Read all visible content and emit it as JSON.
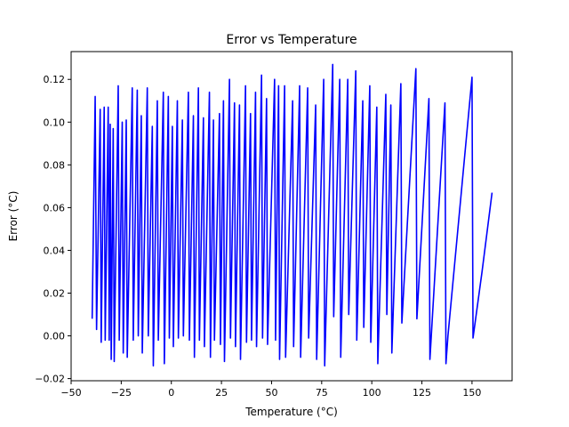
{
  "chart_data": {
    "type": "line",
    "title": "Error vs Temperature",
    "xlabel": "Temperature (°C)",
    "ylabel": "Error (°C)",
    "xlim": [
      -50,
      170
    ],
    "ylim": [
      -0.021,
      0.133
    ],
    "xticks": [
      -50,
      -25,
      0,
      25,
      50,
      75,
      100,
      125,
      150
    ],
    "xtick_labels": [
      "−50",
      "−25",
      "0",
      "25",
      "50",
      "75",
      "100",
      "125",
      "150"
    ],
    "yticks": [
      -0.02,
      0.0,
      0.02,
      0.04,
      0.06,
      0.08,
      0.1,
      0.12
    ],
    "ytick_labels": [
      "−0.02",
      "0.00",
      "0.02",
      "0.04",
      "0.06",
      "0.08",
      "0.10",
      "0.12"
    ],
    "grid": false,
    "series": [
      {
        "color": "#0000ff",
        "points": [
          [
            -39.5,
            0.008
          ],
          [
            -38.0,
            0.112
          ],
          [
            -37.3,
            0.003
          ],
          [
            -35.5,
            0.106
          ],
          [
            -35.0,
            -0.003
          ],
          [
            -33.5,
            0.107
          ],
          [
            -33.0,
            -0.002
          ],
          [
            -31.5,
            0.107
          ],
          [
            -31.0,
            -0.002
          ],
          [
            -30.5,
            0.099
          ],
          [
            -30.0,
            -0.011
          ],
          [
            -29.0,
            0.097
          ],
          [
            -28.5,
            -0.012
          ],
          [
            -26.5,
            0.117
          ],
          [
            -26.0,
            -0.002
          ],
          [
            -24.5,
            0.1
          ],
          [
            -24.0,
            -0.008
          ],
          [
            -22.5,
            0.101
          ],
          [
            -22.0,
            -0.01
          ],
          [
            -19.5,
            0.116
          ],
          [
            -19.0,
            -0.002
          ],
          [
            -17.0,
            0.115
          ],
          [
            -16.5,
            0.0
          ],
          [
            -15.0,
            0.103
          ],
          [
            -14.5,
            -0.008
          ],
          [
            -12.0,
            0.116
          ],
          [
            -11.5,
            0.0
          ],
          [
            -9.5,
            0.098
          ],
          [
            -9.0,
            -0.014
          ],
          [
            -7.0,
            0.11
          ],
          [
            -6.5,
            -0.002
          ],
          [
            -4.0,
            0.114
          ],
          [
            -3.5,
            -0.013
          ],
          [
            -1.5,
            0.112
          ],
          [
            -1.0,
            -0.001
          ],
          [
            0.5,
            0.098
          ],
          [
            1.0,
            -0.005
          ],
          [
            3.0,
            0.11
          ],
          [
            3.5,
            -0.001
          ],
          [
            5.5,
            0.101
          ],
          [
            6.0,
            0.0
          ],
          [
            8.5,
            0.114
          ],
          [
            9.0,
            -0.002
          ],
          [
            11.0,
            0.103
          ],
          [
            11.5,
            -0.01
          ],
          [
            13.5,
            0.116
          ],
          [
            14.0,
            -0.002
          ],
          [
            16.0,
            0.102
          ],
          [
            16.5,
            -0.005
          ],
          [
            19.0,
            0.114
          ],
          [
            19.5,
            -0.01
          ],
          [
            21.0,
            0.101
          ],
          [
            21.5,
            -0.002
          ],
          [
            24.0,
            0.104
          ],
          [
            24.5,
            -0.004
          ],
          [
            26.0,
            0.11
          ],
          [
            26.5,
            -0.012
          ],
          [
            29.0,
            0.12
          ],
          [
            29.5,
            -0.001
          ],
          [
            31.5,
            0.109
          ],
          [
            32.0,
            -0.005
          ],
          [
            34.0,
            0.108
          ],
          [
            34.5,
            -0.011
          ],
          [
            37.0,
            0.117
          ],
          [
            37.5,
            -0.003
          ],
          [
            39.5,
            0.104
          ],
          [
            40.0,
            -0.002
          ],
          [
            42.0,
            0.114
          ],
          [
            42.5,
            -0.005
          ],
          [
            45.0,
            0.122
          ],
          [
            45.5,
            -0.001
          ],
          [
            47.5,
            0.111
          ],
          [
            48.0,
            -0.004
          ],
          [
            51.5,
            0.12
          ],
          [
            52.0,
            -0.002
          ],
          [
            53.5,
            0.117
          ],
          [
            54.0,
            -0.011
          ],
          [
            56.5,
            0.117
          ],
          [
            57.0,
            -0.01
          ],
          [
            60.5,
            0.11
          ],
          [
            61.0,
            -0.005
          ],
          [
            64.0,
            0.117
          ],
          [
            64.5,
            -0.01
          ],
          [
            68.0,
            0.116
          ],
          [
            68.5,
            -0.001
          ],
          [
            72.0,
            0.108
          ],
          [
            72.5,
            -0.011
          ],
          [
            76.0,
            0.12
          ],
          [
            76.5,
            -0.014
          ],
          [
            80.5,
            0.127
          ],
          [
            81.0,
            0.009
          ],
          [
            84.0,
            0.12
          ],
          [
            84.5,
            -0.01
          ],
          [
            88.0,
            0.12
          ],
          [
            88.5,
            0.01
          ],
          [
            92.0,
            0.124
          ],
          [
            92.5,
            -0.002
          ],
          [
            95.5,
            0.11
          ],
          [
            96.0,
            0.004
          ],
          [
            99.0,
            0.117
          ],
          [
            99.5,
            -0.003
          ],
          [
            102.5,
            0.107
          ],
          [
            103.0,
            -0.013
          ],
          [
            107.0,
            0.113
          ],
          [
            107.5,
            0.01
          ],
          [
            109.5,
            0.108
          ],
          [
            110.0,
            -0.008
          ],
          [
            114.5,
            0.118
          ],
          [
            115.0,
            0.006
          ],
          [
            122.0,
            0.125
          ],
          [
            122.5,
            0.008
          ],
          [
            128.5,
            0.111
          ],
          [
            129.0,
            -0.011
          ],
          [
            136.5,
            0.109
          ],
          [
            137.0,
            -0.013
          ],
          [
            138.0,
            0.0
          ],
          [
            150.0,
            0.121
          ],
          [
            150.5,
            -0.001
          ],
          [
            155.0,
            0.03
          ],
          [
            160.0,
            0.067
          ]
        ]
      }
    ]
  }
}
